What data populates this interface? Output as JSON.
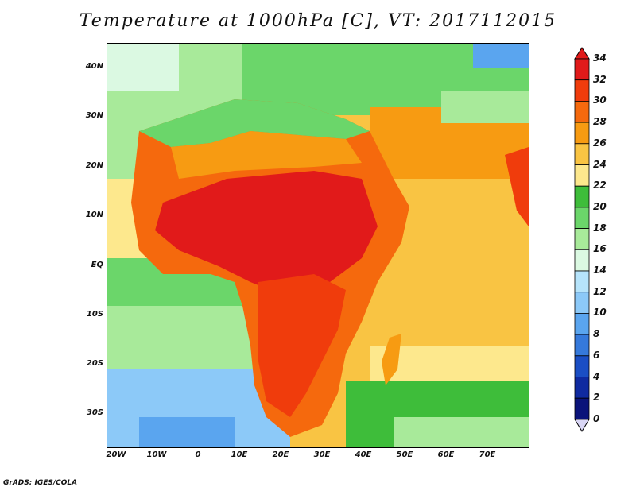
{
  "title": "Temperature at 1000hPa [C], VT: 2017112015",
  "credit": "GrADS: IGES/COLA",
  "map": {
    "lat_labels": [
      "40N",
      "30N",
      "20N",
      "10N",
      "EQ",
      "10S",
      "20S",
      "30S"
    ],
    "lon_labels": [
      "20W",
      "10W",
      "0",
      "10E",
      "20E",
      "30E",
      "40E",
      "50E",
      "60E",
      "70E"
    ]
  },
  "colorbar": {
    "labels": [
      "34",
      "32",
      "30",
      "28",
      "26",
      "24",
      "22",
      "20",
      "18",
      "16",
      "14",
      "12",
      "10",
      "8",
      "6",
      "4",
      "2",
      "0"
    ],
    "colors": [
      "#e11a1a",
      "#f03c0c",
      "#f5690d",
      "#f79b12",
      "#f9c443",
      "#fde88d",
      "#3ebd3a",
      "#6bd66a",
      "#a8ea9a",
      "#dbf9e2",
      "#b6e4fb",
      "#8cc9f8",
      "#5aa5ef",
      "#3579db",
      "#1a4ec4",
      "#0f2aa0",
      "#0a137a"
    ],
    "top_arrow_color": "#e11a1a",
    "bottom_arrow_color": "#d9d6f5"
  }
}
